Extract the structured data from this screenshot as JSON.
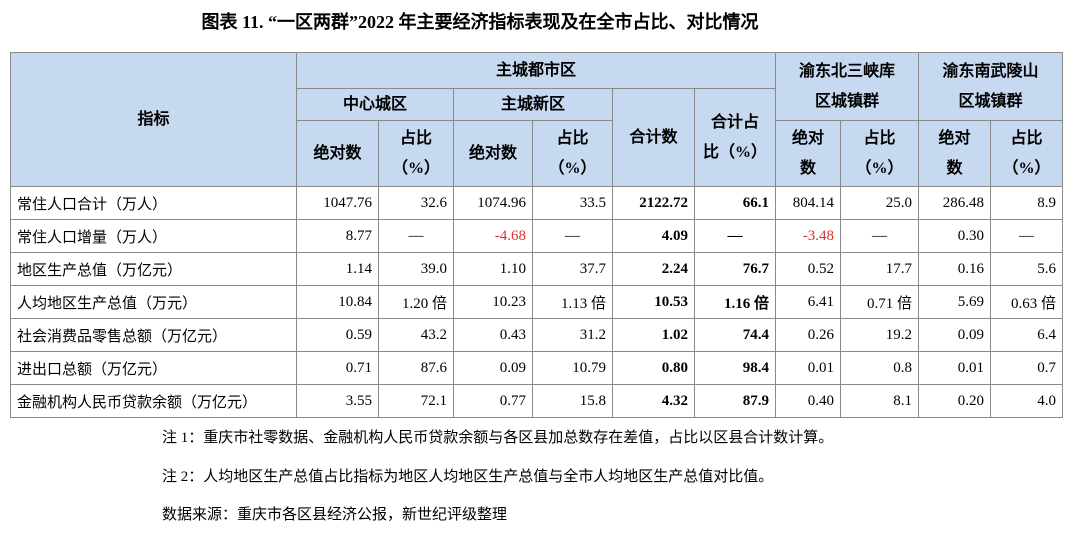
{
  "title": "图表 11. “一区两群”2022 年主要经济指标表现及在全市占比、对比情况",
  "header": {
    "indicator": "指标",
    "metro": "主城都市区",
    "core": "中心城区",
    "new_area": "主城新区",
    "total": "合计数",
    "total_share": [
      "合计占",
      "比（%）"
    ],
    "northeast": [
      "渝东北三峡库",
      "区城镇群"
    ],
    "southeast": [
      "渝东南武陵山",
      "区城镇群"
    ],
    "sub": [
      [
        "绝对数"
      ],
      [
        "占比",
        "（%）"
      ],
      [
        "绝对数"
      ],
      [
        "占比",
        "（%）"
      ],
      [
        "绝对",
        "数"
      ],
      [
        "占比",
        "（%）"
      ],
      [
        "绝对",
        "数"
      ],
      [
        "占比",
        "（%）"
      ]
    ]
  },
  "table": {
    "rows": [
      [
        "常住人口合计（万人）",
        "1047.76",
        "32.6",
        "1074.96",
        "33.5",
        "2122.72",
        "66.1",
        "804.14",
        "25.0",
        "286.48",
        "8.9"
      ],
      [
        "常住人口增量（万人）",
        "8.77",
        "—",
        "-4.68",
        "—",
        "4.09",
        "—",
        "-3.48",
        "—",
        "0.30",
        "—"
      ],
      [
        "地区生产总值（万亿元）",
        "1.14",
        "39.0",
        "1.10",
        "37.7",
        "2.24",
        "76.7",
        "0.52",
        "17.7",
        "0.16",
        "5.6"
      ],
      [
        "人均地区生产总值（万元）",
        "10.84",
        "1.20 倍",
        "10.23",
        "1.13 倍",
        "10.53",
        "1.16 倍",
        "6.41",
        "0.71 倍",
        "5.69",
        "0.63 倍"
      ],
      [
        "社会消费品零售总额（万亿元）",
        "0.59",
        "43.2",
        "0.43",
        "31.2",
        "1.02",
        "74.4",
        "0.26",
        "19.2",
        "0.09",
        "6.4"
      ],
      [
        "进出口总额（万亿元）",
        "0.71",
        "87.6",
        "0.09",
        "10.79",
        "0.80",
        "98.4",
        "0.01",
        "0.8",
        "0.01",
        "0.7"
      ],
      [
        "金融机构人民币贷款余额（万亿元）",
        "3.55",
        "72.1",
        "0.77",
        "15.8",
        "4.32",
        "87.9",
        "0.40",
        "8.1",
        "0.20",
        "4.0"
      ]
    ]
  },
  "notes": [
    "注 1：重庆市社零数据、金融机构人民币贷款余额与各区县加总数存在差值，占比以区县合计数计算。",
    "注 2：人均地区生产总值占比指标为地区人均地区生产总值与全市人均地区生产总值对比值。",
    "数据来源：重庆市各区县经济公报，新世纪评级整理"
  ]
}
